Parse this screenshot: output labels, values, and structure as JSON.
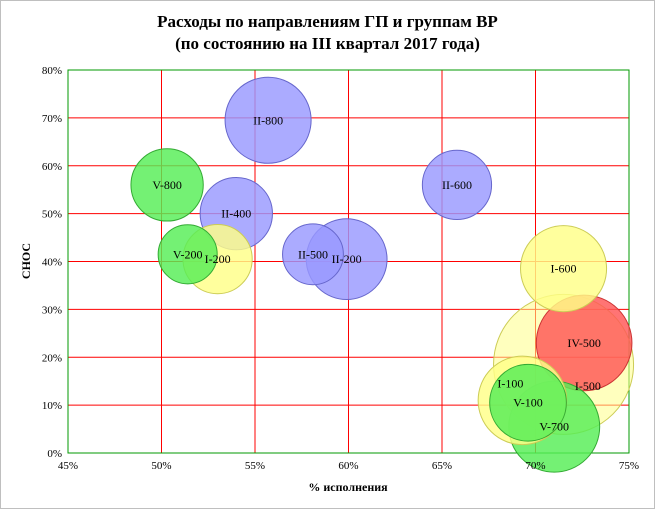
{
  "chart_data": {
    "type": "scatter",
    "title": "Расходы по направлениям ГП и группам ВР",
    "subtitle": "(по состоянию на III  квартал 2017 года)",
    "xlabel": "% исполнения",
    "ylabel": "СНОС",
    "xlim": [
      45,
      75
    ],
    "ylim": [
      0,
      80
    ],
    "x_ticks": [
      "45%",
      "50%",
      "55%",
      "60%",
      "65%",
      "70%",
      "75%"
    ],
    "y_ticks": [
      "0%",
      "10%",
      "20%",
      "30%",
      "40%",
      "50%",
      "60%",
      "70%",
      "80%"
    ],
    "grid": true,
    "colors": {
      "blue": "#9999ff",
      "green": "#55ee55",
      "yellow": "#ffff88",
      "red": "#ff5555",
      "grid_red": "#ff0000",
      "grid_green": "#009900"
    },
    "points": [
      {
        "label": "I-500",
        "x": 71.5,
        "y": 18.5,
        "size": 9.0,
        "color": "yellow"
      },
      {
        "label": "II-800",
        "x": 55.7,
        "y": 69.5,
        "size": 3.4,
        "color": "blue"
      },
      {
        "label": "V-800",
        "x": 50.3,
        "y": 56,
        "size": 2.4,
        "color": "green"
      },
      {
        "label": "II-600",
        "x": 65.8,
        "y": 56,
        "size": 2.2,
        "color": "blue"
      },
      {
        "label": "II-400",
        "x": 54.0,
        "y": 50,
        "size": 2.4,
        "color": "blue"
      },
      {
        "label": "V-200",
        "x": 51.4,
        "y": 41.5,
        "size": 1.6,
        "color": "green"
      },
      {
        "label": "I-200",
        "x": 53.0,
        "y": 40.5,
        "size": 2.2,
        "color": "yellow"
      },
      {
        "label": "II-500",
        "x": 58.1,
        "y": 41.5,
        "size": 1.7,
        "color": "blue"
      },
      {
        "label": "II-200",
        "x": 59.9,
        "y": 40.5,
        "size": 3.0,
        "color": "blue"
      },
      {
        "label": "I-600",
        "x": 71.5,
        "y": 38.5,
        "size": 3.4,
        "color": "yellow"
      },
      {
        "label": "IV-500",
        "x": 72.6,
        "y": 23,
        "size": 4.2,
        "color": "red"
      },
      {
        "label": "I-100",
        "x": 69.3,
        "y": 11,
        "size": 3.6,
        "color": "yellow"
      },
      {
        "label": "V-700",
        "x": 71.0,
        "y": 5.5,
        "size": 3.8,
        "color": "green"
      },
      {
        "label": "V-100",
        "x": 69.6,
        "y": 10.5,
        "size": 2.7,
        "color": "green"
      }
    ]
  }
}
